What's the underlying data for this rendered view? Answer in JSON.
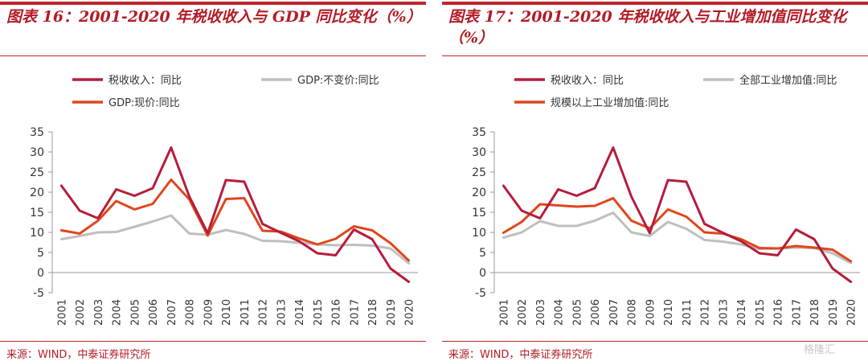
{
  "watermark": "格隆汇",
  "panels": [
    {
      "title": "图表 16：2001-2020 年税收收入与 GDP 同比变化（%）",
      "source": "来源：WIND，中泰证券研究所",
      "chart_data": {
        "type": "line",
        "title": "图表 16：2001-2020 年税收收入与 GDP 同比变化（%）",
        "x": [
          "2001",
          "2002",
          "2003",
          "2004",
          "2005",
          "2006",
          "2007",
          "2008",
          "2009",
          "2010",
          "2011",
          "2012",
          "2013",
          "2014",
          "2015",
          "2016",
          "2017",
          "2018",
          "2019",
          "2020"
        ],
        "ylim": [
          -5,
          35
        ],
        "yticks": [
          -5,
          0,
          5,
          10,
          15,
          20,
          25,
          30,
          35
        ],
        "series": [
          {
            "name": "税收收入：同比",
            "color": "#b51d3a",
            "values": [
              21.6,
              15.4,
              13.5,
              20.7,
              19.1,
              21.0,
              31.1,
              18.9,
              9.8,
              23.0,
              22.6,
              12.1,
              9.9,
              7.8,
              4.8,
              4.3,
              10.7,
              8.3,
              1.0,
              -2.3
            ]
          },
          {
            "name": "GDP:不变价:同比",
            "color": "#bfbfbf",
            "values": [
              8.3,
              9.1,
              10.0,
              10.1,
              11.4,
              12.7,
              14.2,
              9.7,
              9.4,
              10.6,
              9.6,
              7.9,
              7.8,
              7.4,
              7.0,
              6.8,
              6.9,
              6.7,
              6.0,
              2.3
            ]
          },
          {
            "name": "GDP:现价:同比",
            "color": "#e0461c",
            "values": [
              10.5,
              9.7,
              12.9,
              17.8,
              15.7,
              17.1,
              23.1,
              18.2,
              9.2,
              18.3,
              18.5,
              10.4,
              10.2,
              8.5,
              7.0,
              8.4,
              11.5,
              10.5,
              7.3,
              3.0
            ]
          }
        ]
      }
    },
    {
      "title": "图表 17：2001-2020 年税收收入与工业增加值同比变化（%）",
      "source": "来源：WIND，中泰证券研究所",
      "chart_data": {
        "type": "line",
        "title": "图表 17：2001-2020 年税收收入与工业增加值同比变化（%）",
        "x": [
          "2001",
          "2002",
          "2003",
          "2004",
          "2005",
          "2006",
          "2007",
          "2008",
          "2009",
          "2010",
          "2011",
          "2012",
          "2013",
          "2014",
          "2015",
          "2016",
          "2017",
          "2018",
          "2019",
          "2020"
        ],
        "ylim": [
          -5,
          35
        ],
        "yticks": [
          -5,
          0,
          5,
          10,
          15,
          20,
          25,
          30,
          35
        ],
        "series": [
          {
            "name": "税收收入：同比",
            "color": "#b51d3a",
            "values": [
              21.6,
              15.4,
              13.5,
              20.7,
              19.1,
              21.0,
              31.1,
              18.9,
              9.8,
              23.0,
              22.6,
              12.1,
              9.9,
              7.8,
              4.8,
              4.3,
              10.7,
              8.3,
              1.0,
              -2.3
            ]
          },
          {
            "name": "全部工业增加值:同比",
            "color": "#bfbfbf",
            "values": [
              8.7,
              10.0,
              12.8,
              11.6,
              11.6,
              12.9,
              14.9,
              10.0,
              9.1,
              12.6,
              10.9,
              8.1,
              7.7,
              7.0,
              5.9,
              6.0,
              6.2,
              6.1,
              4.8,
              2.4
            ]
          },
          {
            "name": "规模以上工业增加值:同比",
            "color": "#e0461c",
            "values": [
              9.9,
              12.6,
              17.0,
              16.7,
              16.4,
              16.6,
              18.5,
              12.9,
              11.0,
              15.7,
              13.9,
              10.0,
              9.7,
              8.3,
              6.1,
              6.0,
              6.6,
              6.2,
              5.7,
              2.8
            ]
          }
        ]
      }
    }
  ]
}
